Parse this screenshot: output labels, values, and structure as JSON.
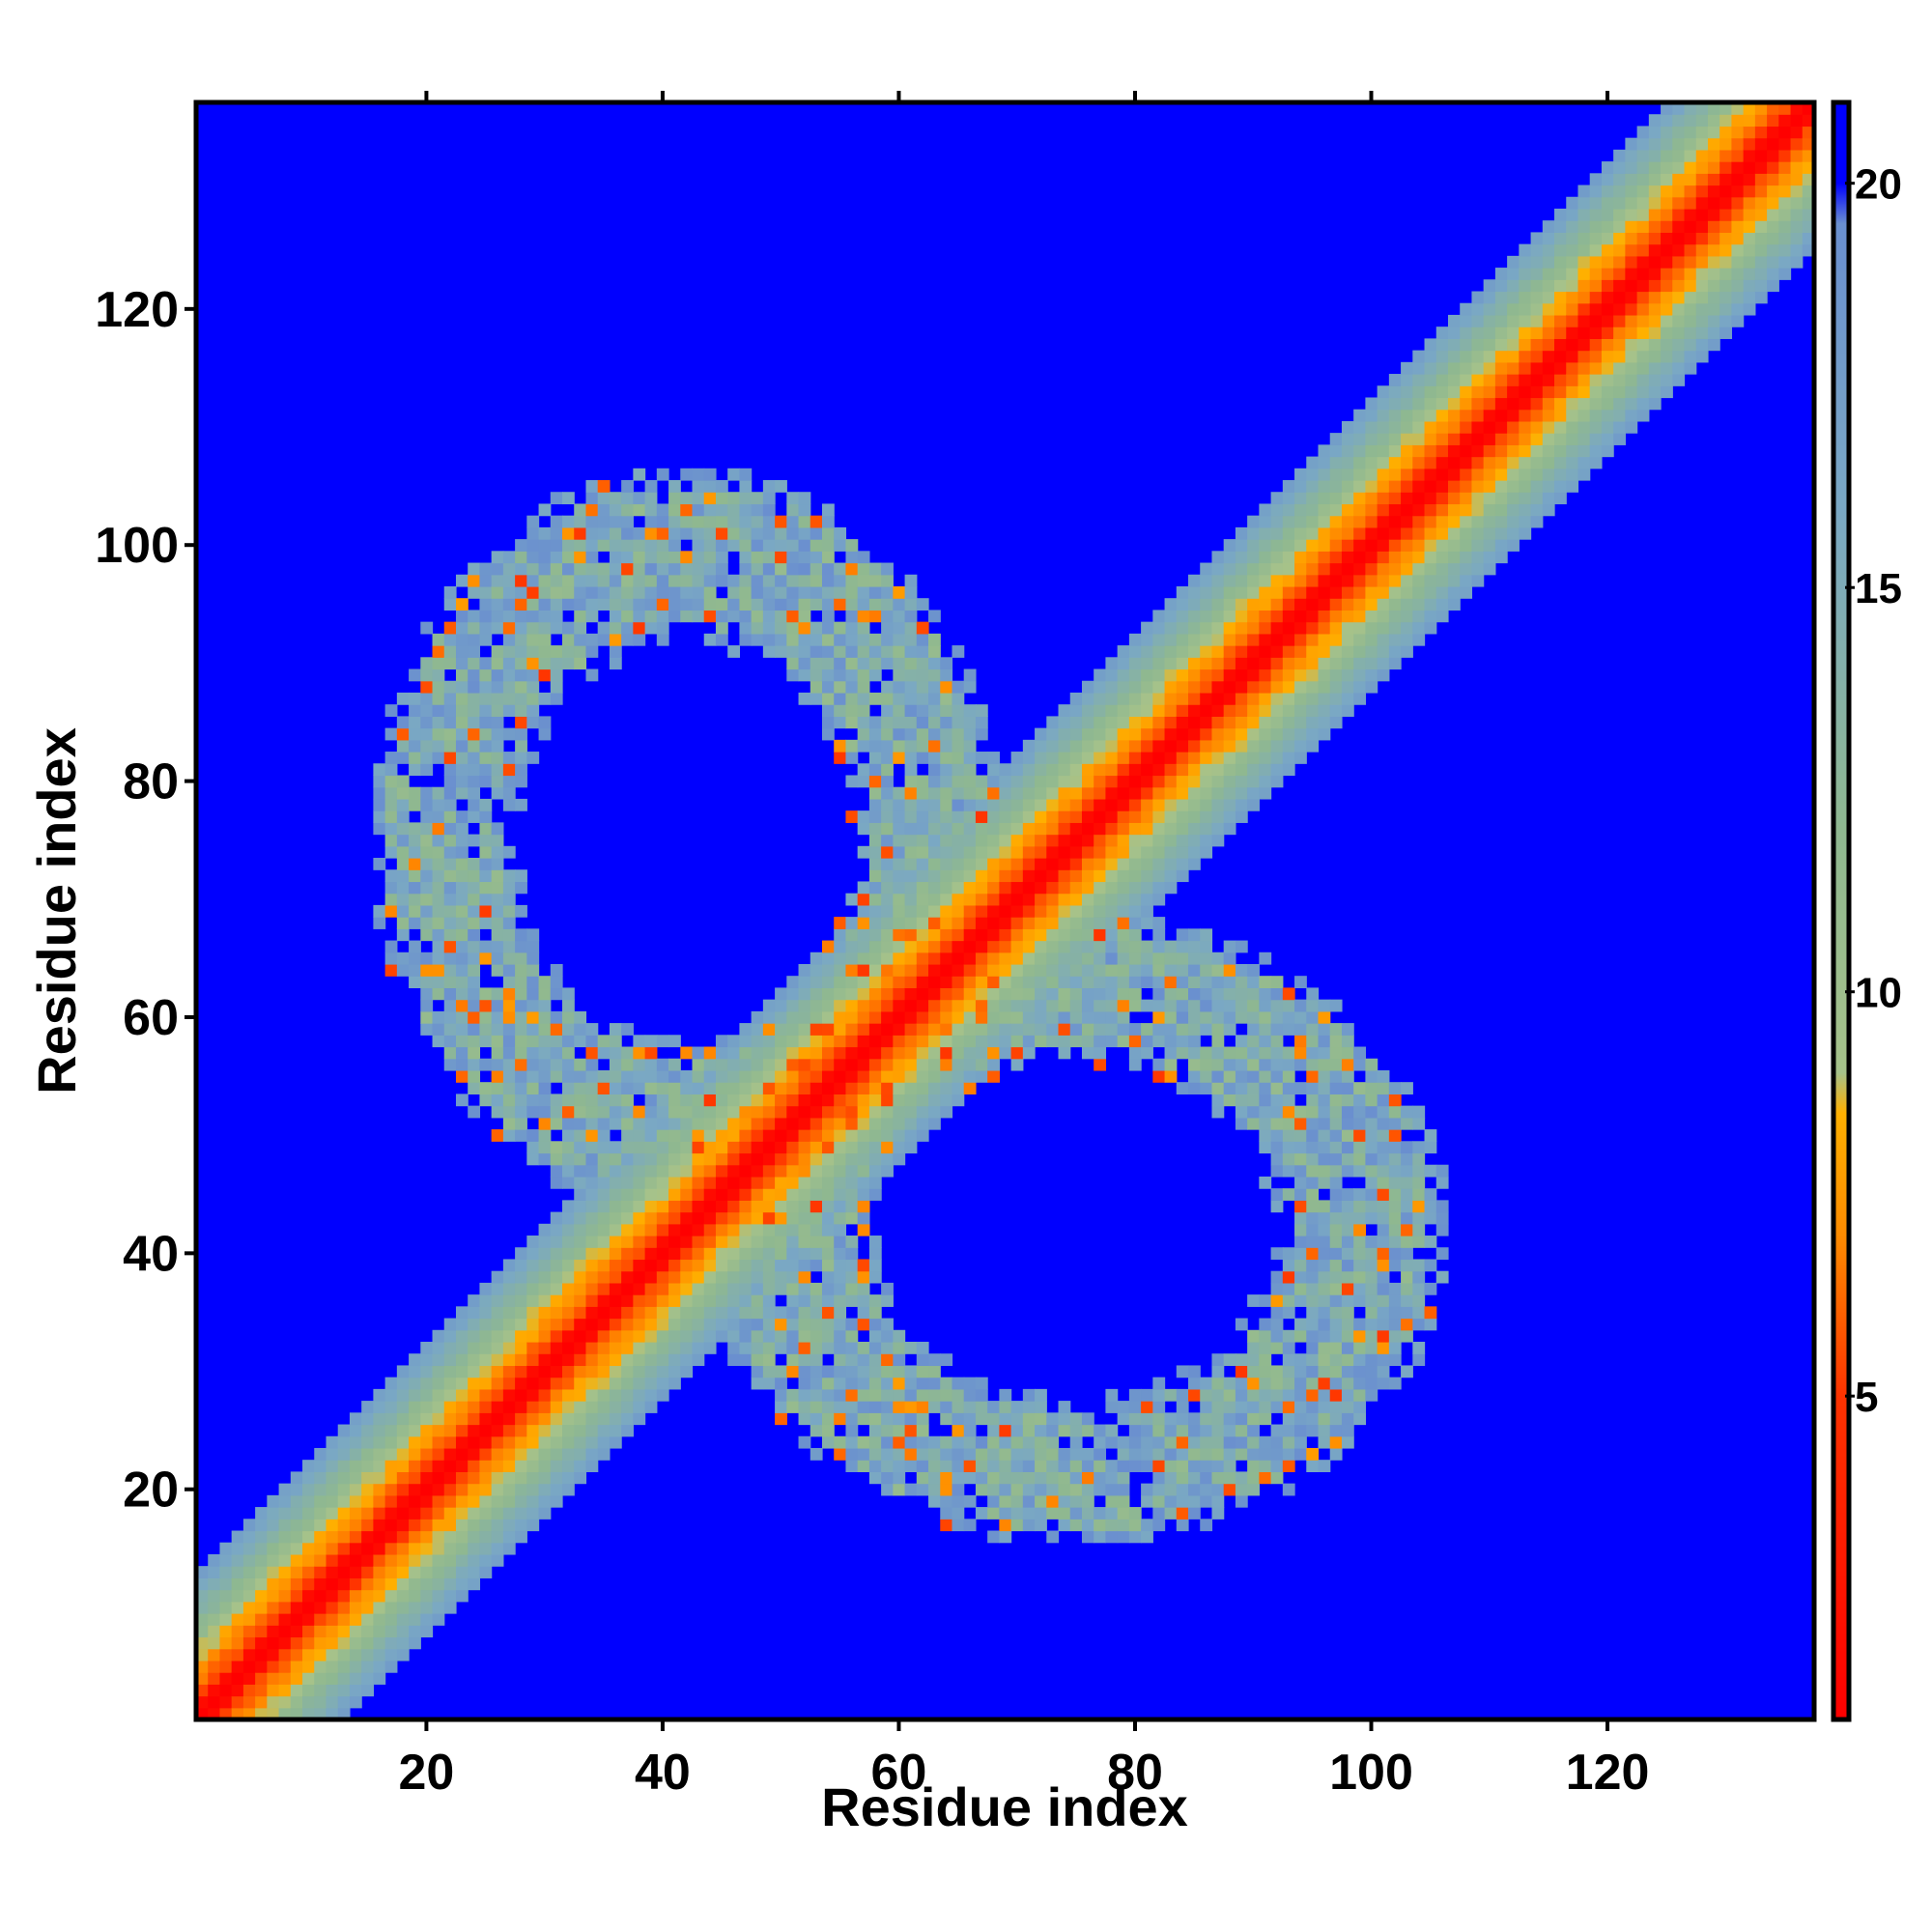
{
  "chart_data": {
    "type": "heatmap",
    "title": "",
    "xlabel": "Residue index",
    "ylabel": "Residue index",
    "xlim": [
      1,
      137
    ],
    "ylim": [
      1,
      137
    ],
    "n_residues": 137,
    "x_ticks": [
      20,
      40,
      60,
      80,
      100,
      120
    ],
    "y_ticks": [
      20,
      40,
      60,
      80,
      100,
      120
    ],
    "x_tick_labels": [
      "20",
      "40",
      "60",
      "80",
      "100",
      "120"
    ],
    "y_tick_labels": [
      "20",
      "40",
      "60",
      "80",
      "100",
      "120"
    ],
    "colorbar": {
      "range": [
        1,
        21
      ],
      "ticks": [
        5,
        10,
        15,
        20
      ],
      "tick_labels": [
        "5",
        "10",
        "15",
        "20"
      ],
      "color_stops": [
        {
          "value": 1,
          "color": "#ff0000"
        },
        {
          "value": 5,
          "color": "#ff3300"
        },
        {
          "value": 7,
          "color": "#ff8c00"
        },
        {
          "value": 8.5,
          "color": "#ffb000"
        },
        {
          "value": 9,
          "color": "#a6c28a"
        },
        {
          "value": 12,
          "color": "#8fb890"
        },
        {
          "value": 16,
          "color": "#7aa8c4"
        },
        {
          "value": 19.5,
          "color": "#6a8fcf"
        },
        {
          "value": 20,
          "color": "#0000ff"
        },
        {
          "value": 21,
          "color": "#0000ff"
        }
      ]
    },
    "background_color": "#0000ff",
    "structure": {
      "description_values": "symmetric residue-residue distance map",
      "diagonal": {
        "core_value": 1,
        "halo_width_residues": 13
      },
      "contact_lobes": [
        {
          "x_range": [
            15,
            65
          ],
          "y_range": [
            40,
            110
          ],
          "center": [
            42,
            75
          ]
        },
        {
          "x_range": [
            40,
            110
          ],
          "y_range": [
            15,
            65
          ],
          "center": [
            75,
            42
          ]
        }
      ]
    }
  }
}
